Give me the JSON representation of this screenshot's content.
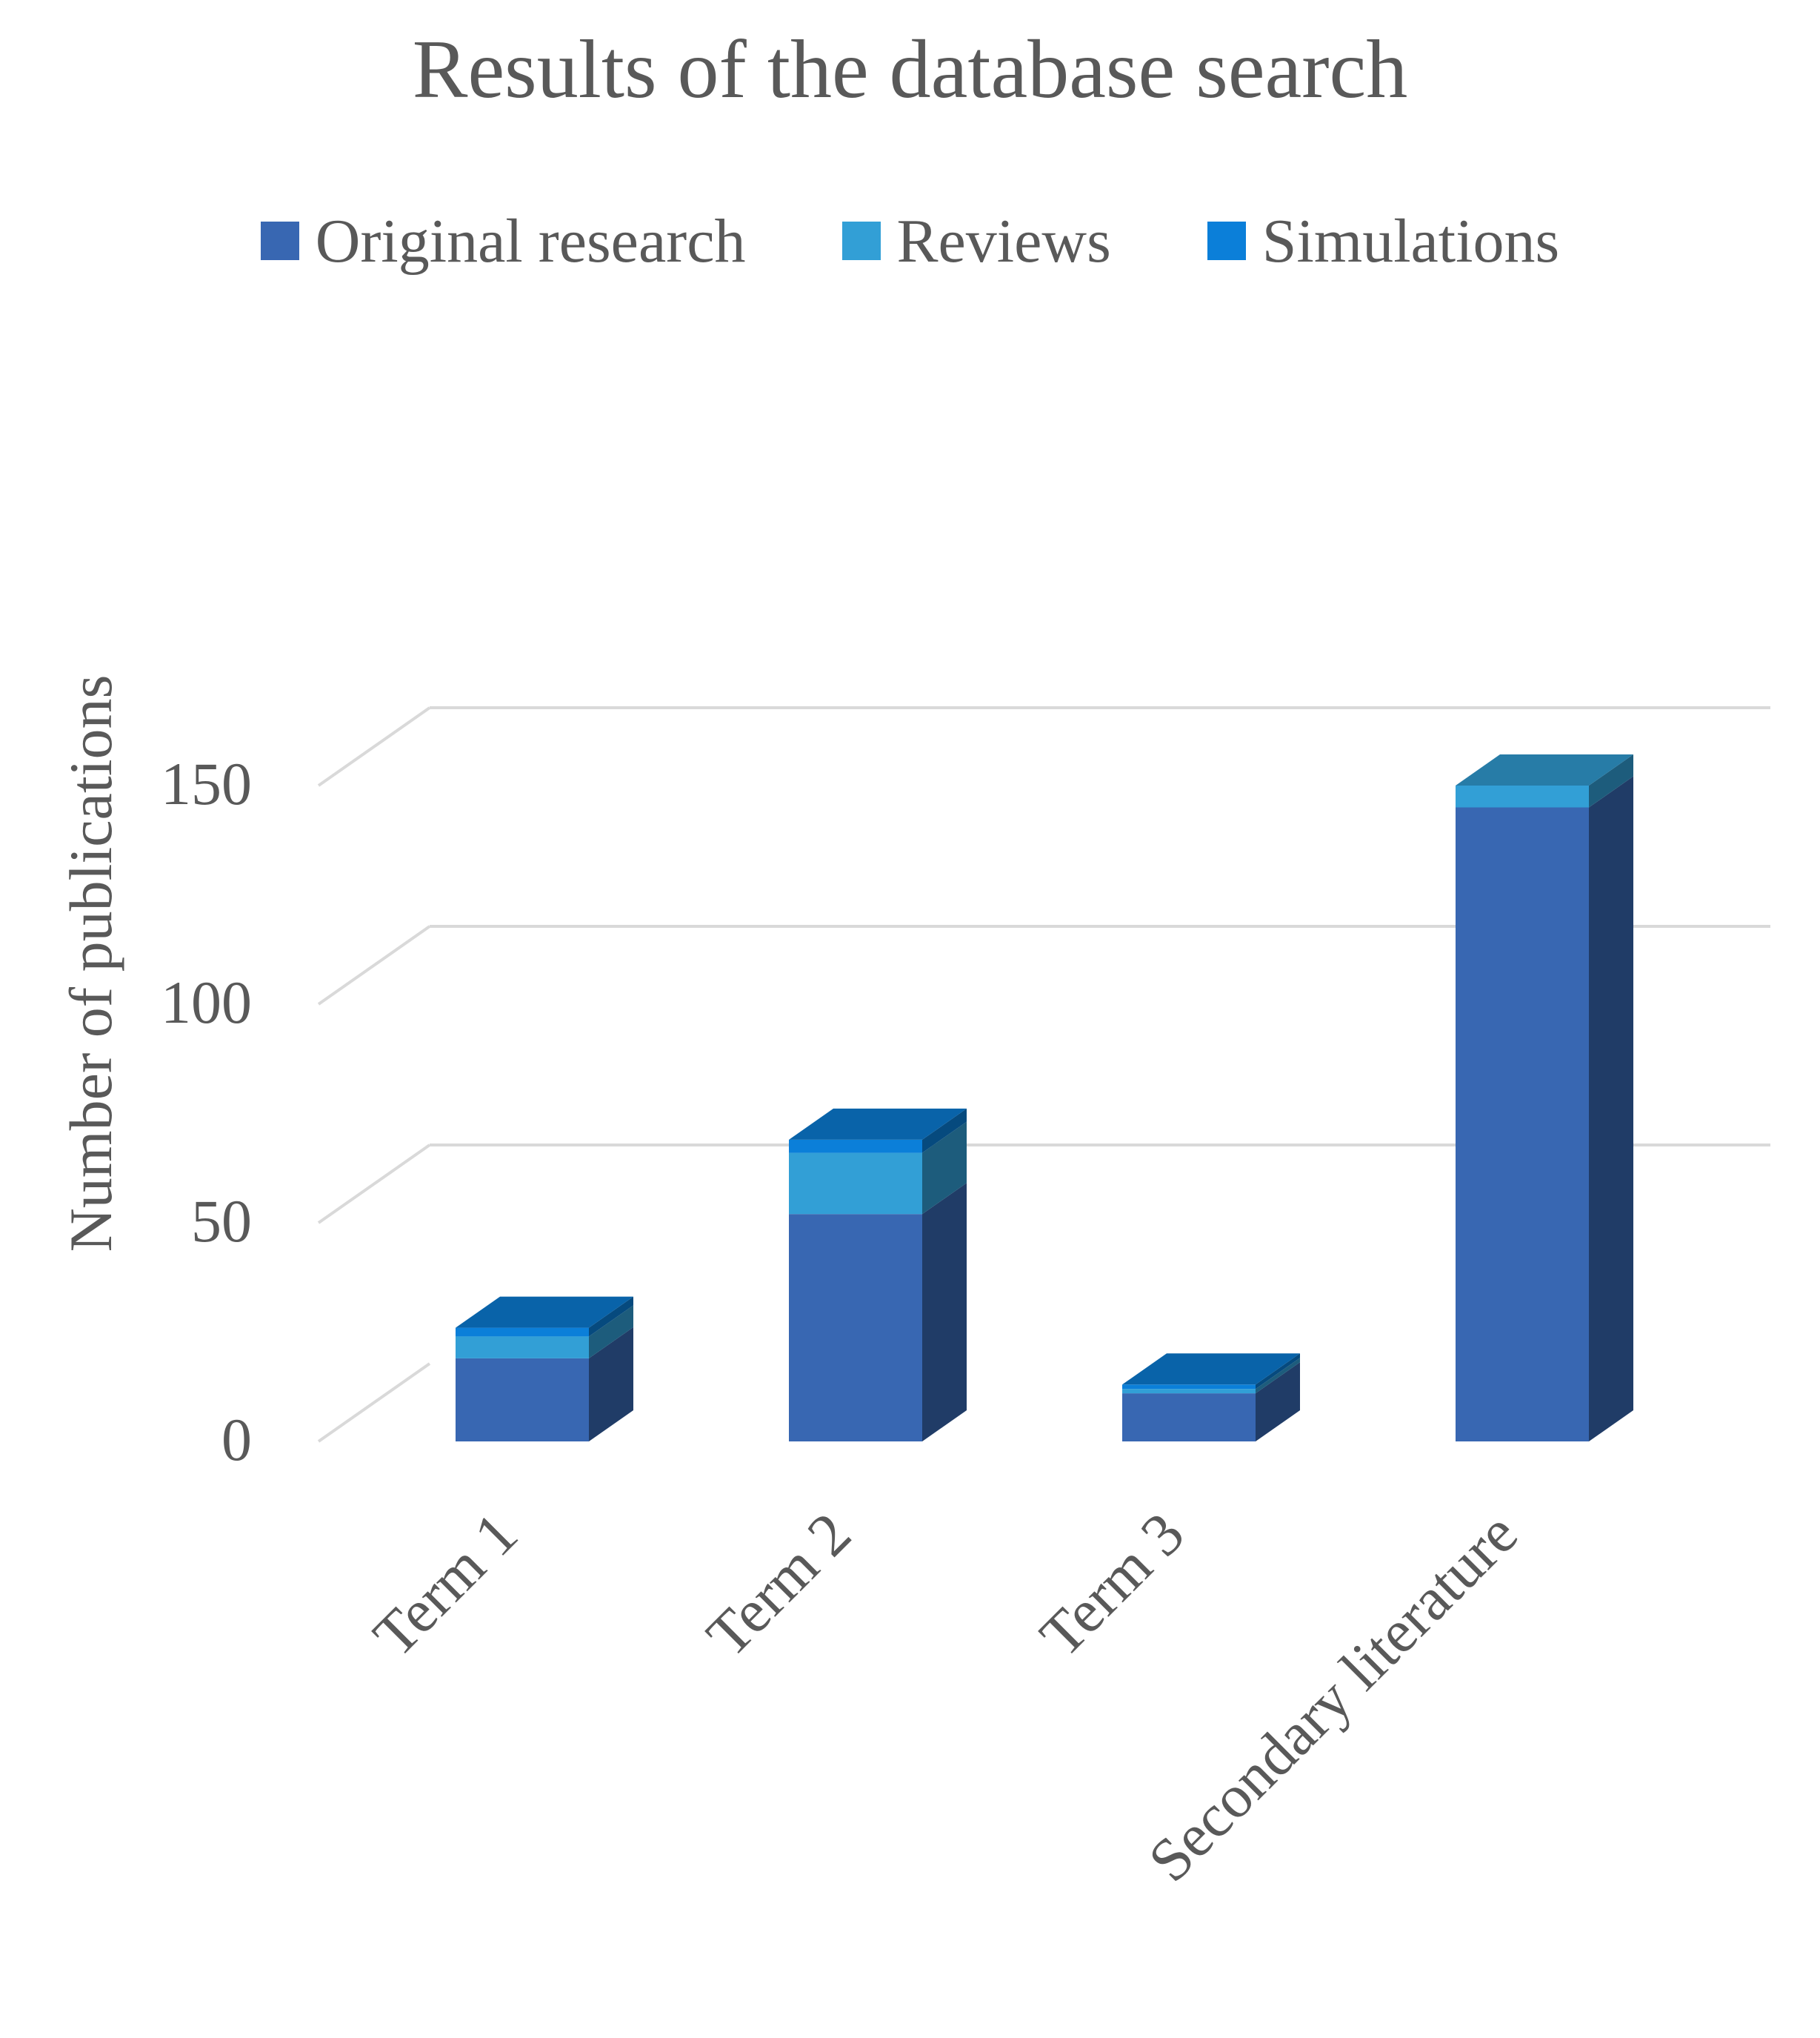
{
  "chart_data": {
    "type": "bar",
    "subtype": "stacked-3d",
    "title": "Results of the database search",
    "xlabel": "",
    "ylabel": "Number of publications",
    "categories": [
      "Term 1",
      "Term 2",
      "Term 3",
      "Secondary literature"
    ],
    "series": [
      {
        "name": "Original research",
        "values": [
          19,
          52,
          11,
          145
        ],
        "color": "#3867b2"
      },
      {
        "name": "Reviews",
        "values": [
          5,
          14,
          1,
          5
        ],
        "color": "#329fd6"
      },
      {
        "name": "Simulations",
        "values": [
          2,
          3,
          1,
          0
        ],
        "color": "#0b7fd9"
      }
    ],
    "ylim": [
      0,
      150
    ],
    "yticks": [
      0,
      50,
      100,
      150
    ],
    "grid": true,
    "legend_position": "top"
  }
}
